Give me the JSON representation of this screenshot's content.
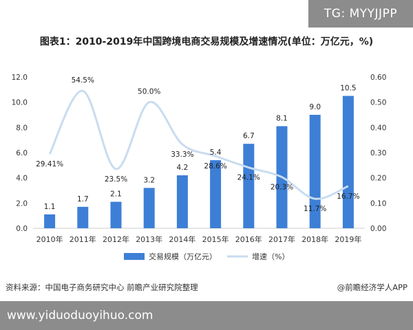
{
  "tag": "TG: MYYJJPP",
  "footer": {
    "source": "资料来源：中国电子商务研究中心 前瞻产业研究院整理",
    "publisher": "@前瞻经济学人APP",
    "site": "www.yiduoduoyihuo.com"
  },
  "chart_data": {
    "type": "bar",
    "title": "图表1：2010-2019年中国跨境电商交易规模及增速情况(单位：万亿元，%)",
    "categories": [
      "2010年",
      "2011年",
      "2012年",
      "2013年",
      "2014年",
      "2015年",
      "2016年",
      "2017年",
      "2018年",
      "2019年"
    ],
    "series": [
      {
        "name": "交易规模（万亿元）",
        "type": "bar",
        "axis": "left",
        "values": [
          1.1,
          1.7,
          2.1,
          3.2,
          4.2,
          5.4,
          6.7,
          8.1,
          9.0,
          10.5
        ],
        "labels": [
          "1.1",
          "1.7",
          "2.1",
          "3.2",
          "4.2",
          "5.4",
          "6.7",
          "8.1",
          "9.0",
          "10.5"
        ],
        "color": "#3d7fd6"
      },
      {
        "name": "增速（%）",
        "type": "line",
        "axis": "right",
        "values": [
          0.2941,
          0.545,
          0.235,
          0.5,
          0.333,
          0.286,
          0.241,
          0.203,
          0.117,
          0.167
        ],
        "labels": [
          "29.41%",
          "54.5%",
          "23.5%",
          "50.0%",
          "33.3%",
          "28.6%",
          "24.1%",
          "20.3%",
          "11.7%",
          "16.7%"
        ],
        "color": "#c9dcef"
      }
    ],
    "y_left": {
      "ylim": [
        0,
        12
      ],
      "ticks": [
        "0.0",
        "2.0",
        "4.0",
        "6.0",
        "8.0",
        "10.0",
        "12.0"
      ]
    },
    "y_right": {
      "ylim": [
        0,
        0.6
      ],
      "ticks": [
        "0.00",
        "0.10",
        "0.20",
        "0.30",
        "0.40",
        "0.50",
        "0.60"
      ]
    },
    "grid": false,
    "legend": "bottom"
  }
}
